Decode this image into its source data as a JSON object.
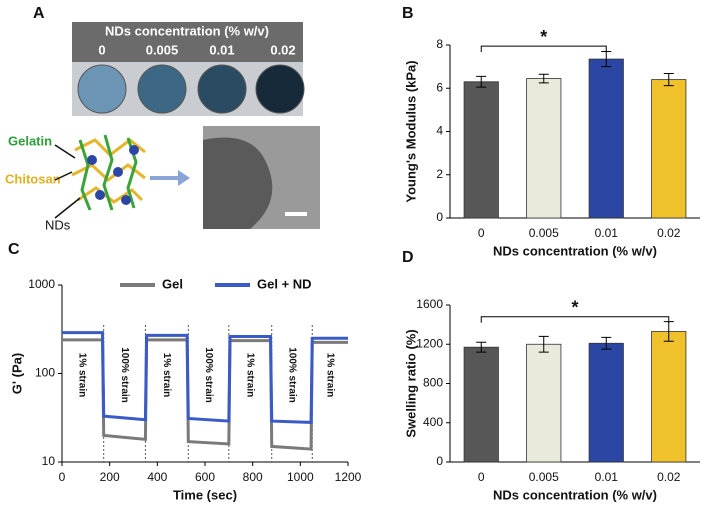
{
  "panel_a": {
    "label": "A",
    "header": "NDs concentration (% w/v)",
    "concentrations": [
      "0",
      "0.005",
      "0.01",
      "0.02"
    ],
    "gelatin": "Gelatin",
    "chitosan": "Chitosan",
    "nds": "NDs"
  },
  "chart_data": [
    {
      "type": "bar",
      "panel": "B",
      "categories": [
        "0",
        "0.005",
        "0.01",
        "0.02"
      ],
      "values": [
        6.3,
        6.45,
        7.35,
        6.4
      ],
      "errors": [
        0.25,
        0.2,
        0.35,
        0.28
      ],
      "colors": [
        "#575757",
        "#e9e9dc",
        "#2b47a3",
        "#efc12a"
      ],
      "ylim": [
        0,
        8
      ],
      "yticks": [
        0,
        2,
        4,
        6,
        8
      ],
      "ylabel": "Young's Modulus (kPa)",
      "xlabel": "NDs concentration (% w/v)",
      "bracket": {
        "text": "*",
        "from": "0",
        "to": "0.01",
        "y": 7.95
      }
    },
    {
      "type": "line",
      "panel": "C",
      "yscale": "log",
      "xlim": [
        0,
        1200
      ],
      "xticks": [
        0,
        200,
        400,
        600,
        800,
        1000,
        1200
      ],
      "ylim": [
        10,
        1000
      ],
      "yticks": [
        10,
        100,
        1000
      ],
      "xlabel": "Time (sec)",
      "ylabel": "G' (Pa)",
      "x": [
        0,
        170,
        175,
        350,
        355,
        525,
        530,
        700,
        705,
        875,
        880,
        1045,
        1050,
        1200
      ],
      "series": [
        {
          "name": "Gel",
          "color": "#7a7a7a",
          "values": [
            240,
            240,
            20,
            18,
            240,
            240,
            17,
            16,
            235,
            235,
            15,
            14,
            225,
            225
          ]
        },
        {
          "name": "Gel + ND",
          "color": "#3a5bc7",
          "values": [
            290,
            290,
            33,
            30,
            270,
            270,
            31,
            29,
            262,
            262,
            29,
            28,
            250,
            250
          ]
        }
      ],
      "switch_times": [
        175,
        350,
        530,
        700,
        880,
        1050
      ],
      "annotations": [
        {
          "text": "1% strain",
          "x": 85
        },
        {
          "text": "100% strain",
          "x": 262
        },
        {
          "text": "1% strain",
          "x": 440
        },
        {
          "text": "100% strain",
          "x": 615
        },
        {
          "text": "1% strain",
          "x": 790
        },
        {
          "text": "100% strain",
          "x": 965
        },
        {
          "text": "1% strain",
          "x": 1125
        }
      ]
    },
    {
      "type": "bar",
      "panel": "D",
      "categories": [
        "0",
        "0.005",
        "0.01",
        "0.02"
      ],
      "values": [
        1170,
        1200,
        1210,
        1330
      ],
      "errors": [
        50,
        80,
        60,
        100
      ],
      "colors": [
        "#575757",
        "#e9e9dc",
        "#2b47a3",
        "#efc12a"
      ],
      "ylim": [
        0,
        1600
      ],
      "yticks": [
        0,
        400,
        800,
        1200,
        1600
      ],
      "ylabel": "Swelling ratio (%)",
      "xlabel": "NDs concentration (% w/v)",
      "bracket": {
        "text": "*",
        "from": "0",
        "to": "0.02",
        "y": 1480
      }
    }
  ]
}
